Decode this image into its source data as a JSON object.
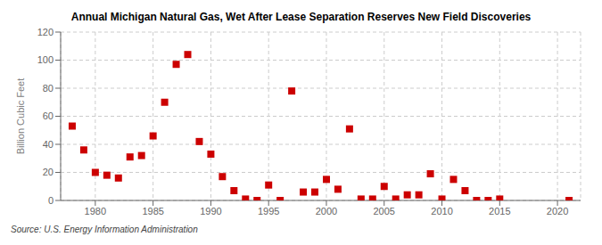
{
  "chart_data": {
    "type": "scatter",
    "title": "Annual Michigan Natural Gas, Wet After Lease Separation Reserves New Field Discoveries",
    "ylabel": "Billion Cubic Feet",
    "source": "Source: U.S. Energy Information Administration",
    "x": [
      1978,
      1979,
      1980,
      1981,
      1982,
      1983,
      1984,
      1985,
      1986,
      1987,
      1988,
      1989,
      1990,
      1991,
      1992,
      1993,
      1994,
      1995,
      1996,
      1997,
      1998,
      1999,
      2000,
      2001,
      2002,
      2003,
      2004,
      2005,
      2006,
      2007,
      2008,
      2009,
      2010,
      2011,
      2012,
      2013,
      2014,
      2015,
      2021
    ],
    "values": [
      53,
      36,
      20,
      18,
      16,
      31,
      32,
      46,
      70,
      97,
      104,
      42,
      33,
      17,
      7,
      1,
      0,
      11,
      0,
      78,
      6,
      6,
      15,
      8,
      51,
      1,
      1,
      10,
      1,
      4,
      4,
      19,
      1,
      15,
      7,
      0,
      0,
      1,
      0
    ],
    "xlim": [
      1977,
      2022
    ],
    "ylim": [
      0,
      120
    ],
    "xticks": [
      1980,
      1985,
      1990,
      1995,
      2000,
      2005,
      2010,
      2015,
      2020
    ],
    "yticks": [
      0,
      20,
      40,
      60,
      80,
      100,
      120
    ],
    "grid": true,
    "color": "#cc0000",
    "marker": "square"
  }
}
